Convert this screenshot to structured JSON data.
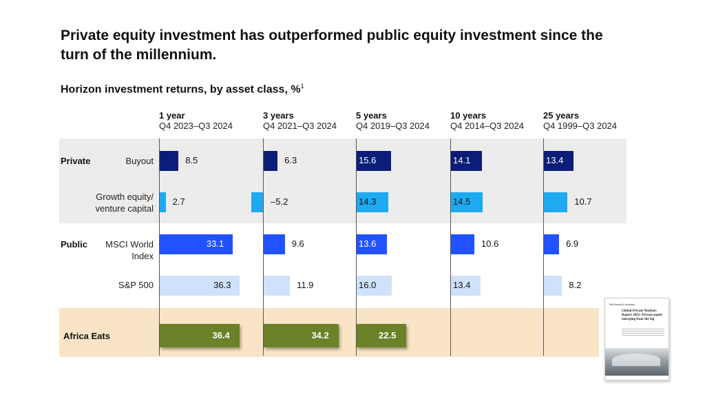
{
  "title": "Private equity investment has outperformed public equity investment since the turn of the millennium.",
  "subtitle": "Horizon investment returns, by asset class, %",
  "subtitle_sup": "1",
  "groups": {
    "private": "Private",
    "public": "Public"
  },
  "row_labels": {
    "buyout": "Buyout",
    "growth": "Growth equity/ venture capital",
    "msci": "MSCI World Index",
    "sp500": "S&P 500",
    "africa": "Africa Eats"
  },
  "colors": {
    "buyout": "#0b1d78",
    "growth": "#1eaaf0",
    "msci": "#2251ff",
    "sp500": "#cfe2fb",
    "africa": "#6b8228",
    "private_band": "#ececec",
    "africa_band": "#f9e5c6"
  },
  "thumbnail": {
    "brand": "McKinsey&Company",
    "title": "Global Private Markets Report 2025: Private equity emerging from the fog"
  },
  "chart_data": {
    "type": "bar",
    "title": "Horizon investment returns, by asset class, %",
    "categories": [
      "1 year",
      "3 years",
      "5 years",
      "10 years",
      "25 years"
    ],
    "ranges": [
      "Q4 2023–Q3 2024",
      "Q4 2021–Q3 2024",
      "Q4 2019–Q3 2024",
      "Q4 2014–Q3 2024",
      "Q4 1999–Q3 2024"
    ],
    "series": [
      {
        "name": "Buyout",
        "group": "Private",
        "values": [
          8.5,
          6.3,
          15.6,
          14.1,
          13.4
        ],
        "labels": [
          "8.5",
          "6.3",
          "15.6",
          "14.1",
          "13.4"
        ]
      },
      {
        "name": "Growth equity/ venture capital",
        "group": "Private",
        "values": [
          2.7,
          -5.2,
          14.3,
          14.5,
          10.7
        ],
        "labels": [
          "2.7",
          "–5.2",
          "14.3",
          "14.5",
          "10.7"
        ]
      },
      {
        "name": "MSCI World Index",
        "group": "Public",
        "values": [
          33.1,
          9.6,
          13.6,
          10.6,
          6.9
        ],
        "labels": [
          "33.1",
          "9.6",
          "13.6",
          "10.6",
          "6.9"
        ]
      },
      {
        "name": "S&P 500",
        "group": "Public",
        "values": [
          36.3,
          11.9,
          16.0,
          13.4,
          8.2
        ],
        "labels": [
          "36.3",
          "11.9",
          "16.0",
          "13.4",
          "8.2"
        ]
      },
      {
        "name": "Africa Eats",
        "values": [
          36.4,
          34.2,
          22.5,
          null,
          null
        ],
        "labels": [
          "36.4",
          "34.2",
          "22.5",
          "",
          ""
        ]
      }
    ]
  }
}
